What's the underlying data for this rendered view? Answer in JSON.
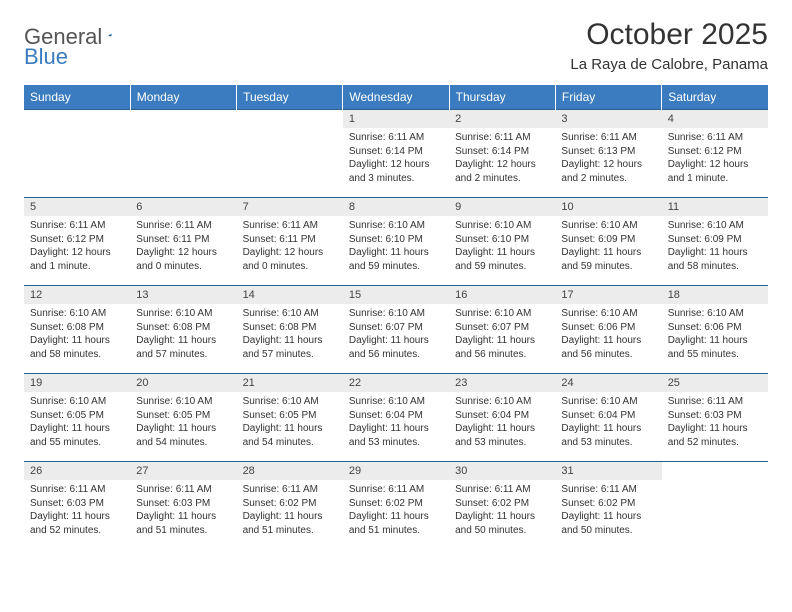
{
  "logo": {
    "part1": "General",
    "part2": "Blue"
  },
  "title": "October 2025",
  "location": "La Raya de Calobre, Panama",
  "colors": {
    "header_bg": "#3a7cbf",
    "header_text": "#ffffff",
    "daynum_bg": "#ececec",
    "border": "#2f5f8c",
    "text": "#333333"
  },
  "weekdays": [
    "Sunday",
    "Monday",
    "Tuesday",
    "Wednesday",
    "Thursday",
    "Friday",
    "Saturday"
  ],
  "weeks": [
    [
      {
        "n": "",
        "lines": []
      },
      {
        "n": "",
        "lines": []
      },
      {
        "n": "",
        "lines": []
      },
      {
        "n": "1",
        "lines": [
          "Sunrise: 6:11 AM",
          "Sunset: 6:14 PM",
          "Daylight: 12 hours",
          "and 3 minutes."
        ]
      },
      {
        "n": "2",
        "lines": [
          "Sunrise: 6:11 AM",
          "Sunset: 6:14 PM",
          "Daylight: 12 hours",
          "and 2 minutes."
        ]
      },
      {
        "n": "3",
        "lines": [
          "Sunrise: 6:11 AM",
          "Sunset: 6:13 PM",
          "Daylight: 12 hours",
          "and 2 minutes."
        ]
      },
      {
        "n": "4",
        "lines": [
          "Sunrise: 6:11 AM",
          "Sunset: 6:12 PM",
          "Daylight: 12 hours",
          "and 1 minute."
        ]
      }
    ],
    [
      {
        "n": "5",
        "lines": [
          "Sunrise: 6:11 AM",
          "Sunset: 6:12 PM",
          "Daylight: 12 hours",
          "and 1 minute."
        ]
      },
      {
        "n": "6",
        "lines": [
          "Sunrise: 6:11 AM",
          "Sunset: 6:11 PM",
          "Daylight: 12 hours",
          "and 0 minutes."
        ]
      },
      {
        "n": "7",
        "lines": [
          "Sunrise: 6:11 AM",
          "Sunset: 6:11 PM",
          "Daylight: 12 hours",
          "and 0 minutes."
        ]
      },
      {
        "n": "8",
        "lines": [
          "Sunrise: 6:10 AM",
          "Sunset: 6:10 PM",
          "Daylight: 11 hours",
          "and 59 minutes."
        ]
      },
      {
        "n": "9",
        "lines": [
          "Sunrise: 6:10 AM",
          "Sunset: 6:10 PM",
          "Daylight: 11 hours",
          "and 59 minutes."
        ]
      },
      {
        "n": "10",
        "lines": [
          "Sunrise: 6:10 AM",
          "Sunset: 6:09 PM",
          "Daylight: 11 hours",
          "and 59 minutes."
        ]
      },
      {
        "n": "11",
        "lines": [
          "Sunrise: 6:10 AM",
          "Sunset: 6:09 PM",
          "Daylight: 11 hours",
          "and 58 minutes."
        ]
      }
    ],
    [
      {
        "n": "12",
        "lines": [
          "Sunrise: 6:10 AM",
          "Sunset: 6:08 PM",
          "Daylight: 11 hours",
          "and 58 minutes."
        ]
      },
      {
        "n": "13",
        "lines": [
          "Sunrise: 6:10 AM",
          "Sunset: 6:08 PM",
          "Daylight: 11 hours",
          "and 57 minutes."
        ]
      },
      {
        "n": "14",
        "lines": [
          "Sunrise: 6:10 AM",
          "Sunset: 6:08 PM",
          "Daylight: 11 hours",
          "and 57 minutes."
        ]
      },
      {
        "n": "15",
        "lines": [
          "Sunrise: 6:10 AM",
          "Sunset: 6:07 PM",
          "Daylight: 11 hours",
          "and 56 minutes."
        ]
      },
      {
        "n": "16",
        "lines": [
          "Sunrise: 6:10 AM",
          "Sunset: 6:07 PM",
          "Daylight: 11 hours",
          "and 56 minutes."
        ]
      },
      {
        "n": "17",
        "lines": [
          "Sunrise: 6:10 AM",
          "Sunset: 6:06 PM",
          "Daylight: 11 hours",
          "and 56 minutes."
        ]
      },
      {
        "n": "18",
        "lines": [
          "Sunrise: 6:10 AM",
          "Sunset: 6:06 PM",
          "Daylight: 11 hours",
          "and 55 minutes."
        ]
      }
    ],
    [
      {
        "n": "19",
        "lines": [
          "Sunrise: 6:10 AM",
          "Sunset: 6:05 PM",
          "Daylight: 11 hours",
          "and 55 minutes."
        ]
      },
      {
        "n": "20",
        "lines": [
          "Sunrise: 6:10 AM",
          "Sunset: 6:05 PM",
          "Daylight: 11 hours",
          "and 54 minutes."
        ]
      },
      {
        "n": "21",
        "lines": [
          "Sunrise: 6:10 AM",
          "Sunset: 6:05 PM",
          "Daylight: 11 hours",
          "and 54 minutes."
        ]
      },
      {
        "n": "22",
        "lines": [
          "Sunrise: 6:10 AM",
          "Sunset: 6:04 PM",
          "Daylight: 11 hours",
          "and 53 minutes."
        ]
      },
      {
        "n": "23",
        "lines": [
          "Sunrise: 6:10 AM",
          "Sunset: 6:04 PM",
          "Daylight: 11 hours",
          "and 53 minutes."
        ]
      },
      {
        "n": "24",
        "lines": [
          "Sunrise: 6:10 AM",
          "Sunset: 6:04 PM",
          "Daylight: 11 hours",
          "and 53 minutes."
        ]
      },
      {
        "n": "25",
        "lines": [
          "Sunrise: 6:11 AM",
          "Sunset: 6:03 PM",
          "Daylight: 11 hours",
          "and 52 minutes."
        ]
      }
    ],
    [
      {
        "n": "26",
        "lines": [
          "Sunrise: 6:11 AM",
          "Sunset: 6:03 PM",
          "Daylight: 11 hours",
          "and 52 minutes."
        ]
      },
      {
        "n": "27",
        "lines": [
          "Sunrise: 6:11 AM",
          "Sunset: 6:03 PM",
          "Daylight: 11 hours",
          "and 51 minutes."
        ]
      },
      {
        "n": "28",
        "lines": [
          "Sunrise: 6:11 AM",
          "Sunset: 6:02 PM",
          "Daylight: 11 hours",
          "and 51 minutes."
        ]
      },
      {
        "n": "29",
        "lines": [
          "Sunrise: 6:11 AM",
          "Sunset: 6:02 PM",
          "Daylight: 11 hours",
          "and 51 minutes."
        ]
      },
      {
        "n": "30",
        "lines": [
          "Sunrise: 6:11 AM",
          "Sunset: 6:02 PM",
          "Daylight: 11 hours",
          "and 50 minutes."
        ]
      },
      {
        "n": "31",
        "lines": [
          "Sunrise: 6:11 AM",
          "Sunset: 6:02 PM",
          "Daylight: 11 hours",
          "and 50 minutes."
        ]
      },
      {
        "n": "",
        "lines": []
      }
    ]
  ]
}
